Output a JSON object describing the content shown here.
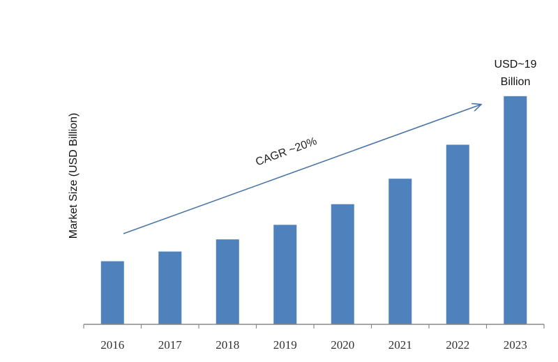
{
  "chart_data": {
    "type": "bar",
    "categories": [
      "2016",
      "2017",
      "2018",
      "2019",
      "2020",
      "2021",
      "2022",
      "2023"
    ],
    "values": [
      5.2,
      6.0,
      7.0,
      8.2,
      9.9,
      12.0,
      14.8,
      18.8
    ],
    "title": "",
    "xlabel": "",
    "ylabel": "Market Size (USD Billion)",
    "ylim": [
      0,
      20
    ],
    "grid": false,
    "bar_color": "#4f81bd",
    "annotations": {
      "cagr": "CAGR ~20%",
      "last_value_line1": "USD~19",
      "last_value_line2": "Billion"
    },
    "trend_arrow_color": "#4a74a8"
  }
}
